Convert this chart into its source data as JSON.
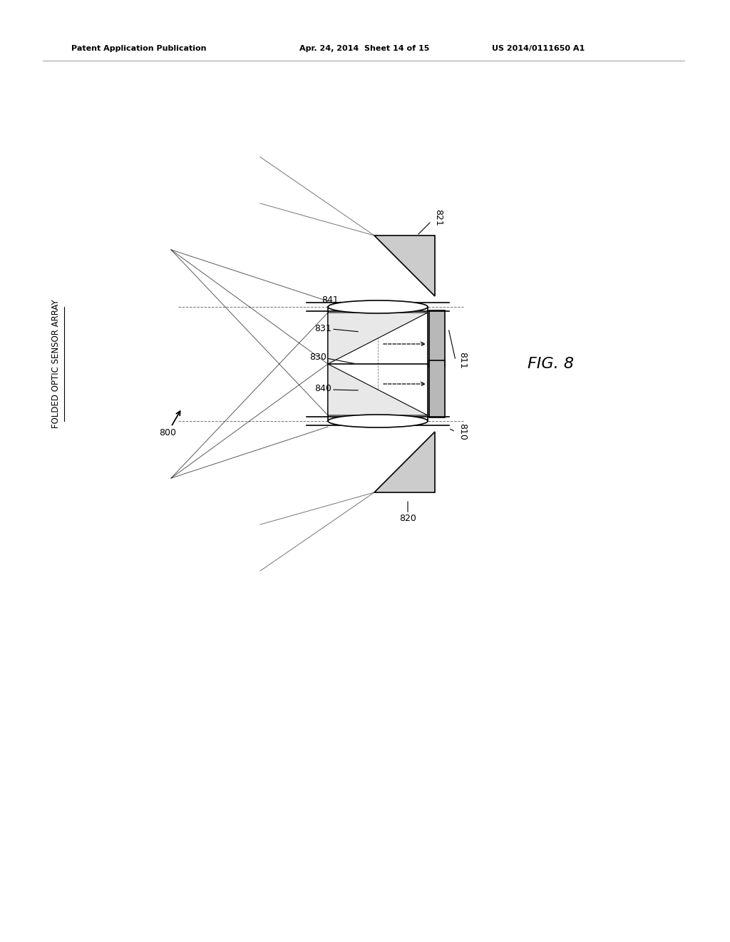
{
  "bg_color": "#ffffff",
  "line_color": "#000000",
  "gray_fill": "#b8b8b8",
  "light_gray_fill": "#cccccc",
  "header_text_left": "Patent Application Publication",
  "header_text_mid": "Apr. 24, 2014  Sheet 14 of 15",
  "header_text_right": "US 2014/0111650 A1",
  "fig_label": "FIG. 8",
  "side_label": "FOLDED OPTIC SENSOR ARRAY",
  "label_800": "800",
  "label_810": "810",
  "label_811": "811",
  "label_820": "820",
  "label_821": "821",
  "label_830": "830",
  "label_831": "831",
  "label_840": "840",
  "label_841": "841"
}
